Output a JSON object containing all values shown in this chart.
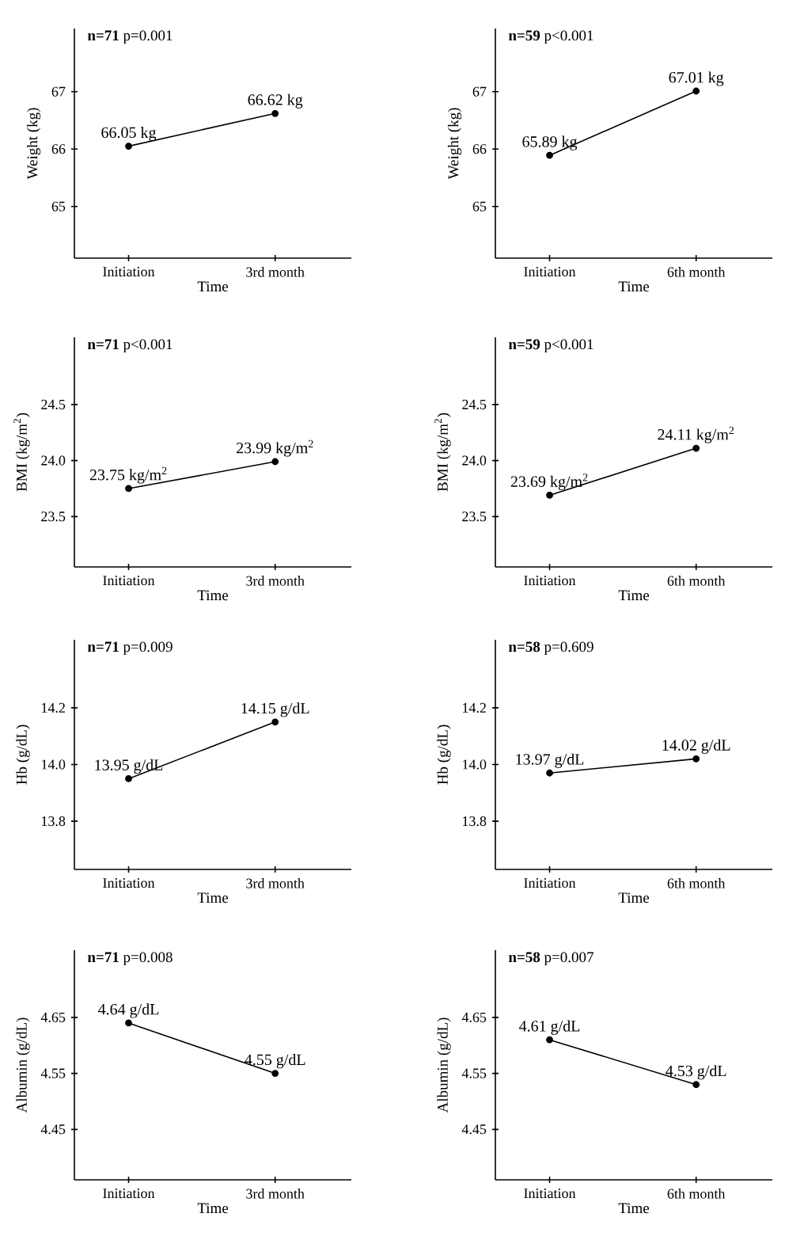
{
  "chart_data": [
    {
      "type": "line",
      "categories": [
        "Initiation",
        "3rd month"
      ],
      "values": [
        66.05,
        66.62
      ],
      "value_labels": [
        "66.05 kg",
        "66.62 kg"
      ],
      "ylim": [
        64.1,
        68.1
      ],
      "yticks": [
        65,
        66,
        67
      ],
      "xlabel": "Time",
      "ylabel": "Weight (kg)",
      "annotations": [
        "**n=71**  p=0.001"
      ],
      "color": "#000000",
      "marker": "circle"
    },
    {
      "type": "line",
      "categories": [
        "Initiation",
        "6th month"
      ],
      "values": [
        65.89,
        67.01
      ],
      "value_labels": [
        "65.89 kg",
        "67.01 kg"
      ],
      "ylim": [
        64.1,
        68.1
      ],
      "yticks": [
        65,
        66,
        67
      ],
      "xlabel": "Time",
      "ylabel": "Weight (kg)",
      "annotations": [
        "**n=59**  p<0.001"
      ],
      "color": "#000000",
      "marker": "circle"
    },
    {
      "type": "line",
      "categories": [
        "Initiation",
        "3rd month"
      ],
      "values": [
        23.75,
        23.99
      ],
      "value_labels": [
        "23.75 kg/m$^{2}$",
        "23.99 kg/m$^{2}$"
      ],
      "ylim": [
        23.05,
        25.1
      ],
      "yticks": [
        {
          "value": 23.5,
          "label": "23.5"
        },
        {
          "value": 24,
          "label": "24.0"
        },
        {
          "value": 24.5,
          "label": "24.5"
        }
      ],
      "xlabel": "Time",
      "ylabel": "BMI (kg/m$^{2}$)",
      "annotations": [
        "**n=71**  p<0.001"
      ],
      "color": "#000000",
      "marker": "circle"
    },
    {
      "type": "line",
      "categories": [
        "Initiation",
        "6th month"
      ],
      "values": [
        23.69,
        24.11
      ],
      "value_labels": [
        "23.69 kg/m$^{2}$",
        "24.11 kg/m$^{2}$"
      ],
      "ylim": [
        23.05,
        25.1
      ],
      "yticks": [
        {
          "value": 23.5,
          "label": "23.5"
        },
        {
          "value": 24,
          "label": "24.0"
        },
        {
          "value": 24.5,
          "label": "24.5"
        }
      ],
      "xlabel": "Time",
      "ylabel": "BMI (kg/m$^{2}$)",
      "annotations": [
        "**n=59**  p<0.001"
      ],
      "color": "#000000",
      "marker": "circle"
    },
    {
      "type": "line",
      "categories": [
        "Initiation",
        "3rd month"
      ],
      "values": [
        13.95,
        14.15
      ],
      "value_labels": [
        "13.95 g/dL",
        "14.15 g/dL"
      ],
      "ylim": [
        13.63,
        14.44
      ],
      "yticks": [
        13.8,
        {
          "value": 14,
          "label": "14.0"
        },
        14.2
      ],
      "xlabel": "Time",
      "ylabel": "Hb (g/dL)",
      "annotations": [
        "**n=71** p=0.009"
      ],
      "color": "#000000",
      "marker": "circle"
    },
    {
      "type": "line",
      "categories": [
        "Initiation",
        "6th month"
      ],
      "values": [
        13.97,
        14.02
      ],
      "value_labels": [
        "13.97 g/dL",
        "14.02 g/dL"
      ],
      "ylim": [
        13.63,
        14.44
      ],
      "yticks": [
        13.8,
        {
          "value": 14,
          "label": "14.0"
        },
        14.2
      ],
      "xlabel": "Time",
      "ylabel": "Hb (g/dL)",
      "annotations": [
        "**n=58**  p=0.609"
      ],
      "color": "#000000",
      "marker": "circle"
    },
    {
      "type": "line",
      "categories": [
        "Initiation",
        "3rd month"
      ],
      "values": [
        4.64,
        4.55
      ],
      "value_labels": [
        "4.64 g/dL",
        "4.55 g/dL"
      ],
      "ylim": [
        4.36,
        4.77
      ],
      "yticks": [
        4.45,
        4.55,
        4.65
      ],
      "xlabel": "Time",
      "ylabel": "Albumin (g/dL)",
      "annotations": [
        "**n=71**  p=0.008"
      ],
      "color": "#000000",
      "marker": "circle"
    },
    {
      "type": "line",
      "categories": [
        "Initiation",
        "6th month"
      ],
      "values": [
        4.61,
        4.53
      ],
      "value_labels": [
        "4.61 g/dL",
        "4.53 g/dL"
      ],
      "ylim": [
        4.36,
        4.77
      ],
      "yticks": [
        4.45,
        4.55,
        4.65
      ],
      "xlabel": "Time",
      "ylabel": "Albumin (g/dL)",
      "annotations": [
        "**n=58**  p=0.007"
      ],
      "color": "#000000",
      "marker": "circle"
    }
  ]
}
